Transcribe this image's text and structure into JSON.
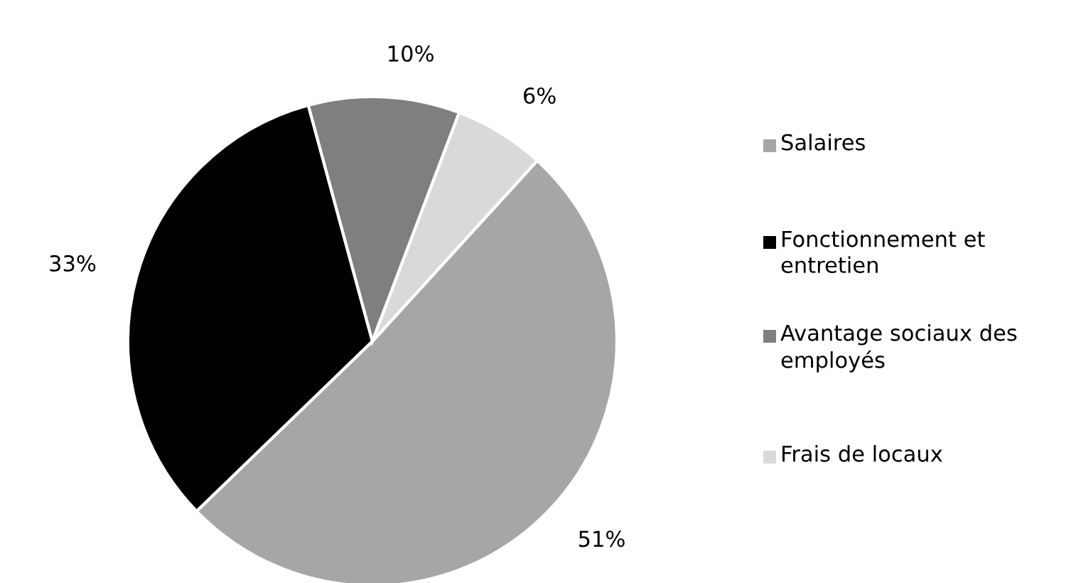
{
  "chart_data": {
    "type": "pie",
    "categories": [
      "Salaires",
      "Fonctionnement et entretien",
      "Avantage sociaux des employés",
      "Frais de locaux"
    ],
    "values": [
      51,
      33,
      10,
      6
    ],
    "colors": [
      "#a6a6a6",
      "#000000",
      "#7f7f7f",
      "#d9d9d9"
    ],
    "value_labels": [
      "51%",
      "33%",
      "10%",
      "6%"
    ],
    "legend": "right"
  }
}
